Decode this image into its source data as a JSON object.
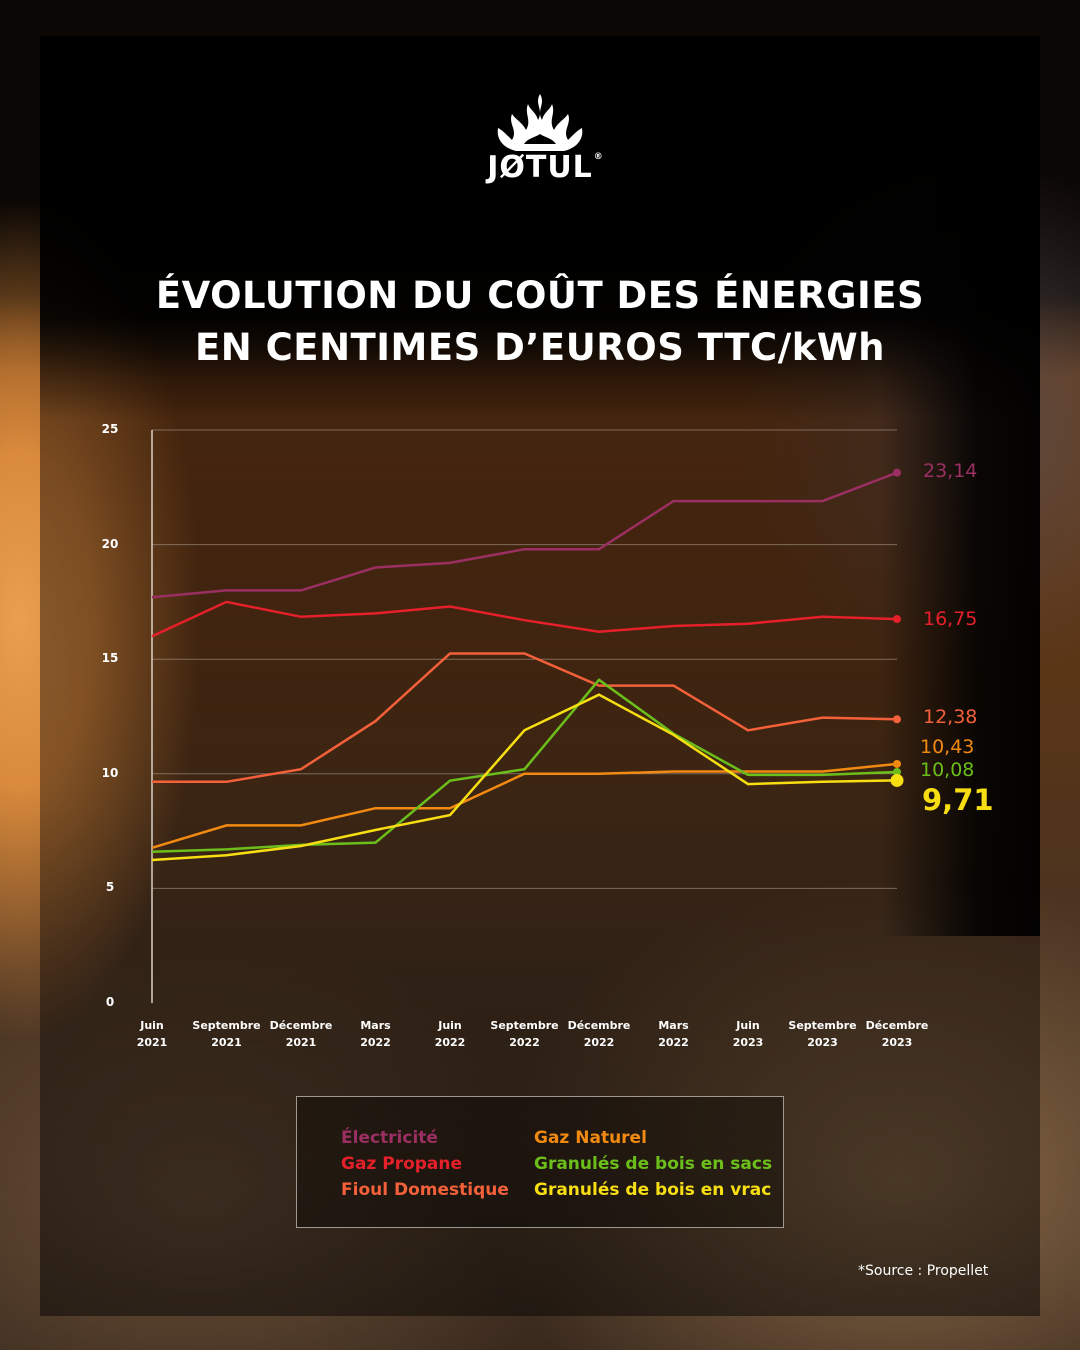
{
  "brand": {
    "name": "JØTUL",
    "registered_mark": "®",
    "logo_icon": "flame-icon"
  },
  "title": {
    "line1": "ÉVOLUTION DU COÛT DES ÉNERGIES",
    "line2": "EN CENTIMES D’EUROS TTC/kWh"
  },
  "colors": {
    "electricite": "#9b2f62",
    "gaz_propane": "#e6202a",
    "fioul_domestique": "#f4603a",
    "gaz_naturel": "#f28a12",
    "granules_sacs": "#6cbf1a",
    "granules_vrac": "#f7de13",
    "text": "#ffffff",
    "grid": "#a89a8c"
  },
  "chart_data": {
    "type": "line",
    "title": "ÉVOLUTION DU COÛT DES ÉNERGIES EN CENTIMES D’EUROS TTC/kWh",
    "xlabel": "",
    "ylabel": "centimes d’euros TTC/kWh",
    "ylim": [
      0,
      25
    ],
    "yticks": [
      0,
      5,
      10,
      15,
      20,
      25
    ],
    "grid": true,
    "legend_position": "bottom",
    "categories": [
      "Juin 2021",
      "Septembre 2021",
      "Décembre 2021",
      "Mars 2022",
      "Juin 2022",
      "Septembre 2022",
      "Décembre 2022",
      "Mars 2022",
      "Juin 2023",
      "Septembre 2023",
      "Décembre 2023"
    ],
    "series": [
      {
        "name": "Électricité",
        "color": "#9b2f62",
        "values": [
          17.7,
          18.0,
          18.0,
          19.0,
          19.2,
          19.8,
          19.8,
          21.9,
          21.9,
          21.9,
          23.14
        ],
        "end_label": "23,14"
      },
      {
        "name": "Gaz Propane",
        "color": "#e6202a",
        "values": [
          16.0,
          17.5,
          16.85,
          17.0,
          17.3,
          16.7,
          16.2,
          16.45,
          16.55,
          16.85,
          16.75
        ],
        "end_label": "16,75"
      },
      {
        "name": "Fioul Domestique",
        "color": "#f4603a",
        "values": [
          9.65,
          9.65,
          10.2,
          12.3,
          15.25,
          15.25,
          13.85,
          13.85,
          11.9,
          12.45,
          12.38
        ],
        "end_label": "12,38"
      },
      {
        "name": "Gaz Naturel",
        "color": "#f28a12",
        "values": [
          6.77,
          7.75,
          7.75,
          8.5,
          8.5,
          10.0,
          10.0,
          10.1,
          10.1,
          10.1,
          10.43
        ],
        "end_label": "10,43"
      },
      {
        "name": "Granulés de bois en sacs",
        "color": "#6cbf1a",
        "values": [
          6.6,
          6.7,
          6.9,
          7.0,
          9.7,
          10.2,
          14.1,
          11.75,
          9.95,
          9.95,
          10.08
        ],
        "end_label": "10,08"
      },
      {
        "name": "Granulés de bois en vrac",
        "color": "#f7de13",
        "values": [
          6.24,
          6.45,
          6.85,
          7.55,
          8.2,
          11.9,
          13.45,
          11.7,
          9.55,
          9.65,
          9.71
        ],
        "end_label": "9,71"
      }
    ]
  },
  "axis": {
    "y_ticks": [
      "25",
      "20",
      "15",
      "10",
      "5",
      "0"
    ],
    "x_ticks": [
      {
        "month": "Juin",
        "year": "2021"
      },
      {
        "month": "Septembre",
        "year": "2021"
      },
      {
        "month": "Décembre",
        "year": "2021"
      },
      {
        "month": "Mars",
        "year": "2022"
      },
      {
        "month": "Juin",
        "year": "2022"
      },
      {
        "month": "Septembre",
        "year": "2022"
      },
      {
        "month": "Décembre",
        "year": "2022"
      },
      {
        "month": "Mars",
        "year": "2022"
      },
      {
        "month": "Juin",
        "year": "2023"
      },
      {
        "month": "Septembre",
        "year": "2023"
      },
      {
        "month": "Décembre",
        "year": "2023"
      }
    ]
  },
  "end_labels": {
    "electricite": "23,14",
    "gaz_propane": "16,75",
    "fioul_domestique": "12,38",
    "gaz_naturel": "10,43",
    "granules_sacs": "10,08",
    "granules_vrac": "9,71"
  },
  "legend": {
    "left": [
      "Électricité",
      "Gaz Propane",
      "Fioul Domestique"
    ],
    "right": [
      "Gaz Naturel",
      "Granulés de bois en sacs",
      "Granulés de bois en vrac"
    ]
  },
  "footer": {
    "source": "*Source : Propellet"
  }
}
